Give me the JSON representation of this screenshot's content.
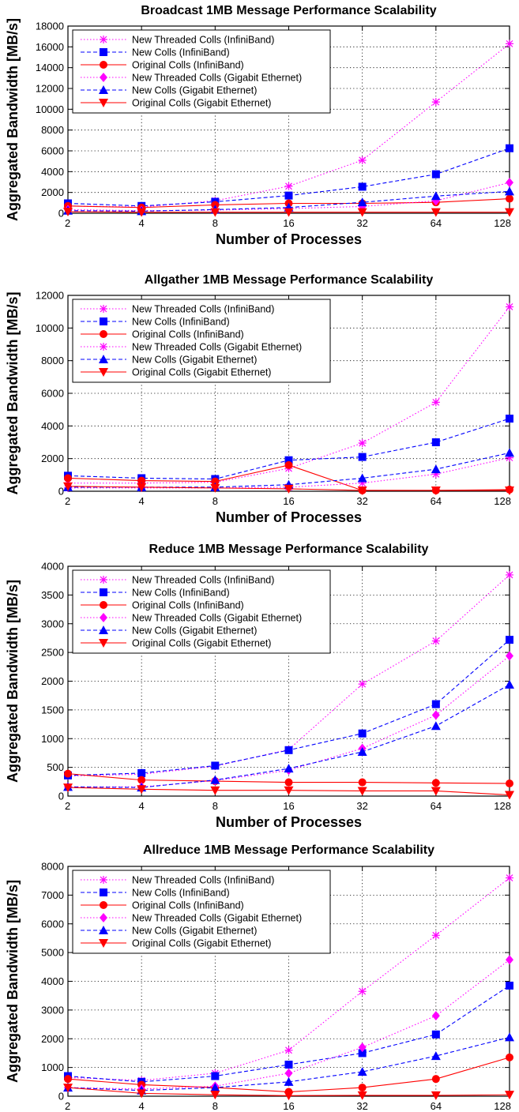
{
  "chart_data": [
    {
      "type": "line",
      "title": "Broadcast 1MB Message Performance Scalability",
      "xlabel": "Number of Processes",
      "ylabel": "Aggregated Bandwidth [MB/s]",
      "x_scale": "log2",
      "categories": [
        "2",
        "4",
        "8",
        "16",
        "32",
        "64",
        "128"
      ],
      "ylim": [
        0,
        18000
      ],
      "yticks": [
        "0",
        "2000",
        "4000",
        "6000",
        "8000",
        "10000",
        "12000",
        "14000",
        "16000",
        "18000"
      ],
      "grid": true,
      "legend_position": "top-left",
      "series": [
        {
          "name": "New Threaded Colls (InfiniBand)",
          "color": "#ff00ff",
          "marker": "star",
          "dash": "dotted",
          "values": [
            700,
            600,
            1200,
            2600,
            5100,
            10700,
            16300
          ]
        },
        {
          "name": "New Colls (InfiniBand)",
          "color": "#0000ff",
          "marker": "square",
          "dash": "dashed",
          "values": [
            950,
            700,
            1100,
            1700,
            2550,
            3750,
            6250
          ]
        },
        {
          "name": "Original Colls (InfiniBand)",
          "color": "#ff0000",
          "marker": "circle",
          "dash": "solid",
          "values": [
            700,
            550,
            800,
            950,
            950,
            1050,
            1400
          ]
        },
        {
          "name": "New Threaded Colls (Gigabit Ethernet)",
          "color": "#ff00ff",
          "marker": "diamond",
          "dash": "dotted",
          "values": [
            350,
            250,
            300,
            450,
            650,
            1200,
            2950
          ]
        },
        {
          "name": "New Colls (Gigabit Ethernet)",
          "color": "#0000ff",
          "marker": "triangle-up",
          "dash": "dashed",
          "values": [
            250,
            200,
            350,
            550,
            1050,
            1650,
            2100
          ]
        },
        {
          "name": "Original Colls (Gigabit Ethernet)",
          "color": "#ff0000",
          "marker": "triangle-down",
          "dash": "solid",
          "values": [
            150,
            100,
            100,
            100,
            100,
            100,
            100
          ]
        }
      ]
    },
    {
      "type": "line",
      "title": "Allgather 1MB Message Performance Scalability",
      "xlabel": "Number of Processes",
      "ylabel": "Aggregated Bandwidth [MB/s]",
      "x_scale": "log2",
      "categories": [
        "2",
        "4",
        "8",
        "16",
        "32",
        "64",
        "128"
      ],
      "ylim": [
        0,
        12000
      ],
      "yticks": [
        "0",
        "2000",
        "4000",
        "6000",
        "8000",
        "10000",
        "12000"
      ],
      "grid": true,
      "legend_position": "top-left",
      "series": [
        {
          "name": "New Threaded Colls (InfiniBand)",
          "color": "#ff00ff",
          "marker": "star",
          "dash": "dotted",
          "values": [
            500,
            500,
            550,
            1400,
            2950,
            5450,
            11300
          ]
        },
        {
          "name": "New Colls (InfiniBand)",
          "color": "#0000ff",
          "marker": "square",
          "dash": "dashed",
          "values": [
            950,
            800,
            750,
            1900,
            2100,
            3000,
            4450
          ]
        },
        {
          "name": "Original Colls (InfiniBand)",
          "color": "#ff0000",
          "marker": "circle",
          "dash": "solid",
          "values": [
            800,
            650,
            600,
            1600,
            50,
            50,
            100
          ]
        },
        {
          "name": "New Threaded Colls (Gigabit Ethernet)",
          "color": "#ff00ff",
          "marker": "star",
          "dash": "dotted",
          "values": [
            200,
            200,
            200,
            250,
            500,
            1050,
            2050
          ]
        },
        {
          "name": "New Colls (Gigabit Ethernet)",
          "color": "#0000ff",
          "marker": "triangle-up",
          "dash": "dashed",
          "values": [
            250,
            250,
            250,
            400,
            800,
            1350,
            2350
          ]
        },
        {
          "name": "Original Colls (Gigabit Ethernet)",
          "color": "#ff0000",
          "marker": "triangle-down",
          "dash": "solid",
          "values": [
            300,
            250,
            200,
            150,
            50,
            50,
            50
          ]
        }
      ]
    },
    {
      "type": "line",
      "title": "Reduce 1MB Message Performance Scalability",
      "xlabel": "Number of Processes",
      "ylabel": "Aggregated Bandwidth [MB/s]",
      "x_scale": "log2",
      "categories": [
        "2",
        "4",
        "8",
        "16",
        "32",
        "64",
        "128"
      ],
      "ylim": [
        0,
        4000
      ],
      "yticks": [
        "0",
        "500",
        "1000",
        "1500",
        "2000",
        "2500",
        "3000",
        "3500",
        "4000"
      ],
      "grid": true,
      "legend_position": "top-left",
      "series": [
        {
          "name": "New Threaded Colls (InfiniBand)",
          "color": "#ff00ff",
          "marker": "star",
          "dash": "dotted",
          "values": [
            350,
            380,
            520,
            810,
            1950,
            2700,
            3850
          ]
        },
        {
          "name": "New Colls (InfiniBand)",
          "color": "#0000ff",
          "marker": "square",
          "dash": "dashed",
          "values": [
            360,
            400,
            530,
            800,
            1090,
            1600,
            2720
          ]
        },
        {
          "name": "Original Colls (InfiniBand)",
          "color": "#ff0000",
          "marker": "circle",
          "dash": "solid",
          "values": [
            390,
            280,
            260,
            240,
            240,
            230,
            220
          ]
        },
        {
          "name": "New Threaded Colls (Gigabit Ethernet)",
          "color": "#ff00ff",
          "marker": "diamond",
          "dash": "dotted",
          "values": [
            160,
            160,
            270,
            450,
            830,
            1410,
            2440
          ]
        },
        {
          "name": "New Colls (Gigabit Ethernet)",
          "color": "#0000ff",
          "marker": "triangle-up",
          "dash": "dashed",
          "values": [
            160,
            150,
            280,
            480,
            770,
            1220,
            1940
          ]
        },
        {
          "name": "Original Colls (Gigabit Ethernet)",
          "color": "#ff0000",
          "marker": "triangle-down",
          "dash": "solid",
          "values": [
            150,
            120,
            100,
            100,
            90,
            90,
            20
          ]
        }
      ]
    },
    {
      "type": "line",
      "title": "Allreduce 1MB Message Performance Scalability",
      "xlabel": "Number of Processes",
      "ylabel": "Aggregated Bandwidth [MB/s]",
      "x_scale": "log2",
      "categories": [
        "2",
        "4",
        "8",
        "16",
        "32",
        "64",
        "128"
      ],
      "ylim": [
        0,
        8000
      ],
      "yticks": [
        "0",
        "1000",
        "2000",
        "3000",
        "4000",
        "5000",
        "6000",
        "7000",
        "8000"
      ],
      "grid": true,
      "legend_position": "top-left",
      "series": [
        {
          "name": "New Threaded Colls (InfiniBand)",
          "color": "#ff00ff",
          "marker": "star",
          "dash": "dotted",
          "values": [
            650,
            550,
            800,
            1600,
            3650,
            5600,
            7600
          ]
        },
        {
          "name": "New Colls (InfiniBand)",
          "color": "#0000ff",
          "marker": "square",
          "dash": "dashed",
          "values": [
            700,
            500,
            700,
            1100,
            1500,
            2150,
            3850
          ]
        },
        {
          "name": "Original Colls (InfiniBand)",
          "color": "#ff0000",
          "marker": "circle",
          "dash": "solid",
          "values": [
            600,
            400,
            300,
            150,
            300,
            600,
            1350
          ]
        },
        {
          "name": "New Threaded Colls (Gigabit Ethernet)",
          "color": "#ff00ff",
          "marker": "diamond",
          "dash": "dotted",
          "values": [
            300,
            250,
            350,
            800,
            1700,
            2800,
            4750
          ]
        },
        {
          "name": "New Colls (Gigabit Ethernet)",
          "color": "#0000ff",
          "marker": "triangle-up",
          "dash": "dashed",
          "values": [
            300,
            200,
            300,
            500,
            850,
            1400,
            2050
          ]
        },
        {
          "name": "Original Colls (Gigabit Ethernet)",
          "color": "#ff0000",
          "marker": "triangle-down",
          "dash": "solid",
          "values": [
            300,
            100,
            50,
            20,
            30,
            30,
            50
          ]
        }
      ]
    }
  ]
}
